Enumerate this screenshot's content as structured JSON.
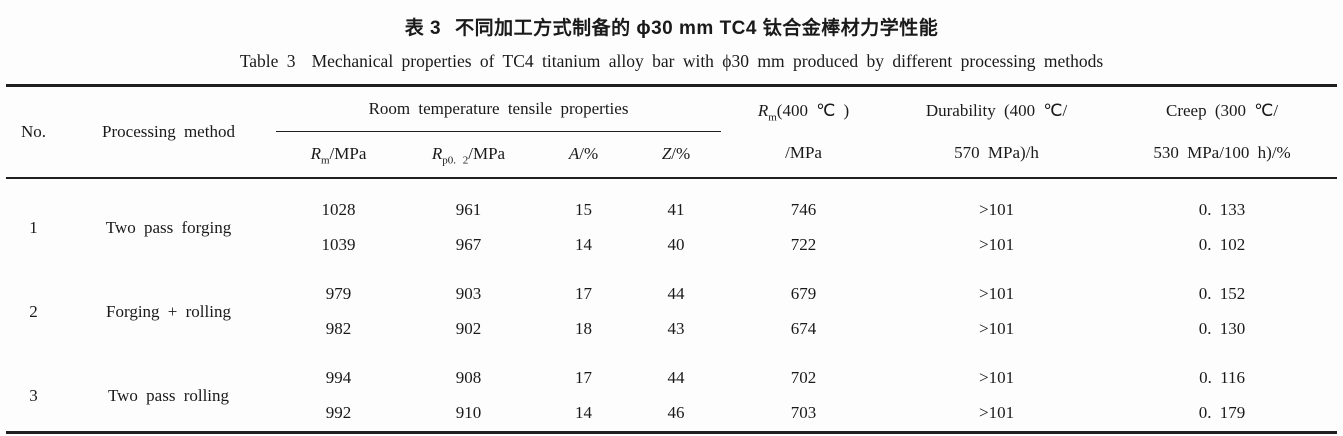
{
  "colors": {
    "background": "#fdfdfd",
    "text": "#1a1a1a",
    "rule": "#1f1f1f"
  },
  "caption_zh": {
    "label": "表 3",
    "text": "不同加工方式制备的 ϕ30 mm TC4 钛合金棒材力学性能"
  },
  "caption_en": {
    "label": "Table 3",
    "text": "Mechanical properties of TC4 titanium alloy bar with ϕ30 mm produced by different processing methods"
  },
  "table": {
    "header": {
      "no": "No.",
      "processing_method": "Processing method",
      "tensile_group": "Room temperature tensile properties",
      "rm": {
        "sym": "R",
        "sub": "m",
        "unit": "/MPa"
      },
      "rp02": {
        "sym": "R",
        "sub": "p0. 2",
        "unit": "/MPa"
      },
      "a": {
        "sym": "A",
        "unit": "/%"
      },
      "z": {
        "sym": "Z",
        "unit": "/%"
      },
      "rm400": {
        "sym": "R",
        "sub": "m",
        "rest": "(400 ℃ )",
        "line2": "/MPa"
      },
      "durability": {
        "line1": "Durability (400 ℃/",
        "line2": "570 MPa)/h"
      },
      "creep": {
        "line1": "Creep (300 ℃/",
        "line2": "530 MPa/100 h)/%"
      }
    },
    "rows": [
      {
        "no": "1",
        "method": "Two pass forging",
        "rm": "1028",
        "rp02": "961",
        "a": "15",
        "z": "41",
        "rm400": "746",
        "durability": ">101",
        "creep": "0. 133"
      },
      {
        "rm": "1039",
        "rp02": "967",
        "a": "14",
        "z": "40",
        "rm400": "722",
        "durability": ">101",
        "creep": "0. 102"
      },
      {
        "no": "2",
        "method": "Forging + rolling",
        "rm": "979",
        "rp02": "903",
        "a": "17",
        "z": "44",
        "rm400": "679",
        "durability": ">101",
        "creep": "0. 152"
      },
      {
        "rm": "982",
        "rp02": "902",
        "a": "18",
        "z": "43",
        "rm400": "674",
        "durability": ">101",
        "creep": "0. 130"
      },
      {
        "no": "3",
        "method": "Two pass rolling",
        "rm": "994",
        "rp02": "908",
        "a": "17",
        "z": "44",
        "rm400": "702",
        "durability": ">101",
        "creep": "0. 116"
      },
      {
        "rm": "992",
        "rp02": "910",
        "a": "14",
        "z": "46",
        "rm400": "703",
        "durability": ">101",
        "creep": "0. 179"
      }
    ]
  }
}
